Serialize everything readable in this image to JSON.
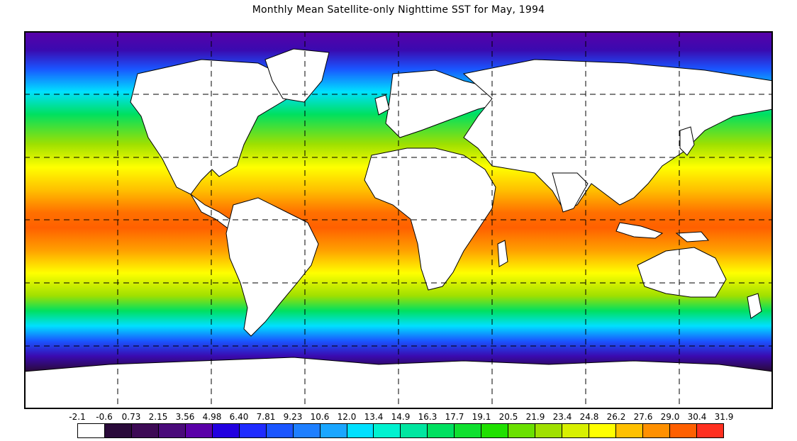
{
  "title": "Monthly Mean Satellite-only Nighttime SST for May, 1994",
  "map": {
    "type": "world-map",
    "projection": "equirectangular",
    "lon_range": [
      -180,
      180
    ],
    "lat_range": [
      -90,
      90
    ],
    "gridlines": true,
    "gridline_style": "dashed",
    "land_color": "#ffffff",
    "coastline_color": "#000000"
  },
  "legend": {
    "labels": [
      "-2.1",
      "-0.6",
      "0.73",
      "2.15",
      "3.56",
      "4.98",
      "6.40",
      "7.81",
      "9.23",
      "10.6",
      "12.0",
      "13.4",
      "14.9",
      "16.3",
      "17.7",
      "19.1",
      "20.5",
      "21.9",
      "23.4",
      "24.8",
      "26.2",
      "27.6",
      "29.0",
      "30.4",
      "31.9"
    ],
    "colors": [
      "#ffffff",
      "#2a0a3a",
      "#3d0a55",
      "#4a0a7a",
      "#5a00a8",
      "#2200e0",
      "#1f2bff",
      "#1a55ff",
      "#1e7fff",
      "#1aa6ff",
      "#00e0ff",
      "#00f2d0",
      "#00e6a0",
      "#00e060",
      "#10e030",
      "#20e000",
      "#6ae000",
      "#a0e000",
      "#d8f000",
      "#ffff00",
      "#ffc000",
      "#ff9000",
      "#ff6000",
      "#ff3020"
    ]
  },
  "icons": {
    "map": "world-map-icon"
  }
}
